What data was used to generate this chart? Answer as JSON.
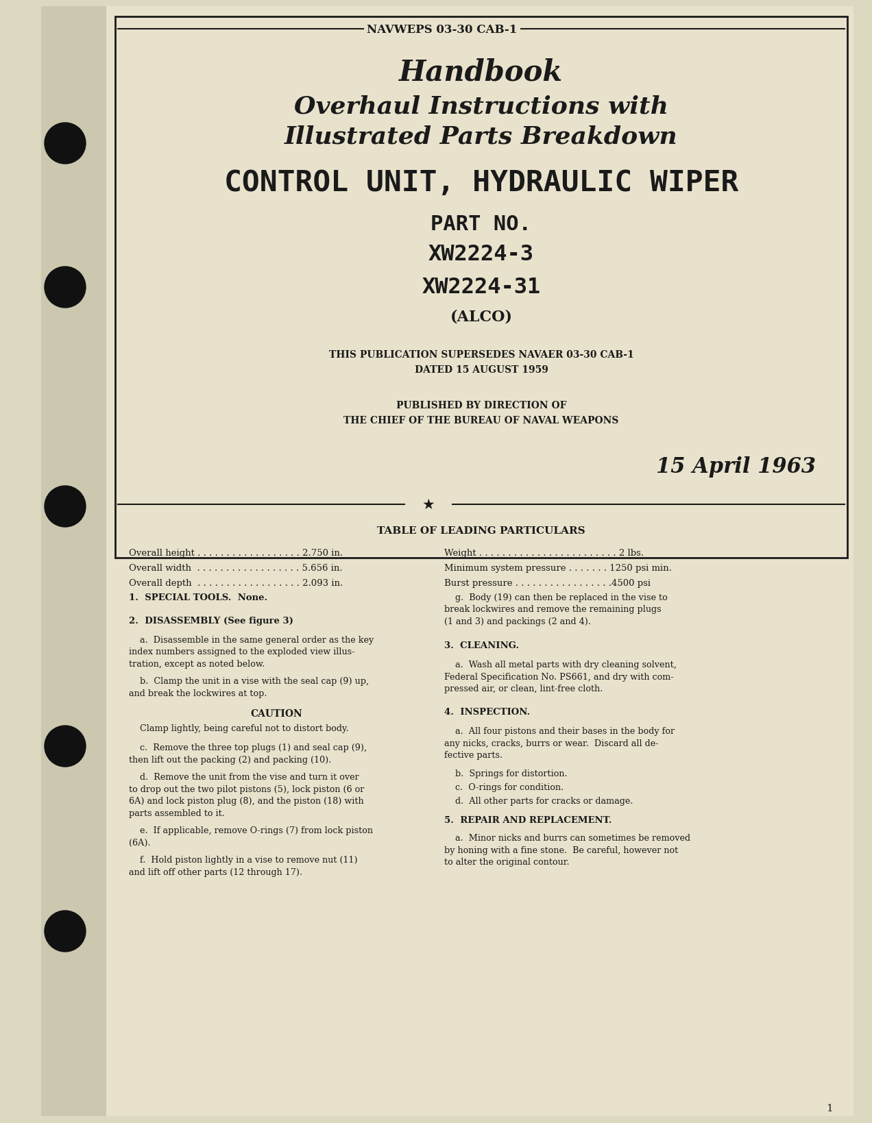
{
  "bg_color": "#e8e4d0",
  "text_color": "#1a1a1a",
  "page_bg": "#ddd8c0",
  "header_text": "NAVWEPS 03-30 CAB-1",
  "title1": "Handbook",
  "title2": "Overhaul Instructions with",
  "title3": "Illustrated Parts Breakdown",
  "title4": "CONTROL UNIT, HYDRAULIC WIPER",
  "part_no_label": "PART NO.",
  "part1": "XW2224-3",
  "part2": "XW2224-31",
  "alco": "(ALCO)",
  "supersedes1": "THIS PUBLICATION SUPERSEDES NAVAER 03-30 CAB-1",
  "supersedes2": "DATED 15 AUGUST 1959",
  "published1": "PUBLISHED BY DIRECTION OF",
  "published2": "THE CHIEF OF THE BUREAU OF NAVAL WEAPONS",
  "date": "15 April 1963",
  "table_heading": "TABLE OF LEADING PARTICULARS",
  "particulars_left": [
    "Overall height . . . . . . . . . . . . . . . . . . 2.750 in.",
    "Overall width  . . . . . . . . . . . . . . . . . . 5.656 in.",
    "Overall depth  . . . . . . . . . . . . . . . . . . 2.093 in."
  ],
  "particulars_right": [
    "Weight . . . . . . . . . . . . . . . . . . . . . . . . 2 lbs.",
    "Minimum system pressure . . . . . . . 1250 psi min.",
    "Burst pressure . . . . . . . . . . . . . . . . .4500 psi"
  ],
  "section1_head": "1.  SPECIAL TOOLS.  None.",
  "section2_head": "2.  DISASSEMBLY (See figure 3)",
  "section2a_lines": [
    "    a.  Disassemble in the same general order as the key",
    "index numbers assigned to the exploded view illus-",
    "tration, except as noted below."
  ],
  "section2b_lines": [
    "    b.  Clamp the unit in a vise with the seal cap (9) up,",
    "and break the lockwires at top."
  ],
  "caution_head": "CAUTION",
  "caution_text": "    Clamp lightly, being careful not to distort body.",
  "section2c_lines": [
    "    c.  Remove the three top plugs (1) and seal cap (9),",
    "then lift out the packing (2) and packing (10)."
  ],
  "section2d_lines": [
    "    d.  Remove the unit from the vise and turn it over",
    "to drop out the two pilot pistons (5), lock piston (6 or",
    "6A) and lock piston plug (8), and the piston (18) with",
    "parts assembled to it."
  ],
  "section2e_lines": [
    "    e.  If applicable, remove O-rings (7) from lock piston",
    "(6A)."
  ],
  "section2f_lines": [
    "    f.  Hold piston lightly in a vise to remove nut (11)",
    "and lift off other parts (12 through 17)."
  ],
  "section2g_lines": [
    "    g.  Body (19) can then be replaced in the vise to",
    "break lockwires and remove the remaining plugs",
    "(1 and 3) and packings (2 and 4)."
  ],
  "section3_head": "3.  CLEANING.",
  "section3a_lines": [
    "    a.  Wash all metal parts with dry cleaning solvent,",
    "Federal Specification No. PS661, and dry with com-",
    "pressed air, or clean, lint-free cloth."
  ],
  "section4_head": "4.  INSPECTION.",
  "section4a_lines": [
    "    a.  All four pistons and their bases in the body for",
    "any nicks, cracks, burrs or wear.  Discard all de-",
    "fective parts."
  ],
  "section4b": "    b.  Springs for distortion.",
  "section4c": "    c.  O-rings for condition.",
  "section4d": "    d.  All other parts for cracks or damage.",
  "section5_head": "5.  REPAIR AND REPLACEMENT.",
  "section5a_lines": [
    "    a.  Minor nicks and burrs can sometimes be removed",
    "by honing with a fine stone.  Be careful, however not",
    "to alter the original contour."
  ],
  "page_num": "1",
  "hole_y_positions": [
    1430,
    1220,
    900,
    550,
    280
  ]
}
